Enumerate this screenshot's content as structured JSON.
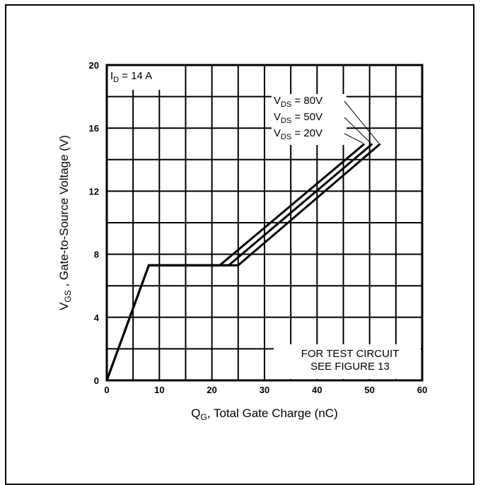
{
  "chart_data": {
    "type": "line",
    "xlabel": {
      "main": "Q",
      "sub": "G",
      "rest": ", Total Gate Charge (nC)"
    },
    "ylabel": {
      "main": "V",
      "sub": "GS",
      "rest": " , Gate-to-Source Voltage (V)"
    },
    "xlim": [
      0,
      60
    ],
    "ylim": [
      0,
      20
    ],
    "x_ticks": [
      0,
      10,
      20,
      30,
      40,
      50,
      60
    ],
    "y_ticks": [
      0,
      4,
      8,
      12,
      16,
      20
    ],
    "x_tick_labels": [
      "0",
      "10",
      "20",
      "30",
      "40",
      "50",
      "60"
    ],
    "y_tick_labels": [
      "0",
      "4",
      "8",
      "12",
      "16",
      "20"
    ],
    "grid": true,
    "condition": {
      "main": "I",
      "sub": "D",
      "rest": " = 14 A"
    },
    "series": [
      {
        "name": "VDS = 80V",
        "label_main": "V",
        "label_sub": "DS",
        "label_rest": " = 80V",
        "x": [
          0,
          8,
          25,
          52
        ],
        "y": [
          0,
          7.3,
          7.3,
          15.0
        ]
      },
      {
        "name": "VDS = 50V",
        "label_main": "V",
        "label_sub": "DS",
        "label_rest": " = 50V",
        "x": [
          0,
          8,
          23.2,
          50.5
        ],
        "y": [
          0,
          7.3,
          7.3,
          15.0
        ]
      },
      {
        "name": "VDS = 20V",
        "label_main": "V",
        "label_sub": "DS",
        "label_rest": " = 20V",
        "x": [
          0,
          8,
          21.5,
          49.0
        ],
        "y": [
          0,
          7.3,
          7.3,
          15.0
        ]
      }
    ],
    "note_lines": [
      "FOR TEST CIRCUIT",
      "SEE FIGURE 13"
    ]
  }
}
